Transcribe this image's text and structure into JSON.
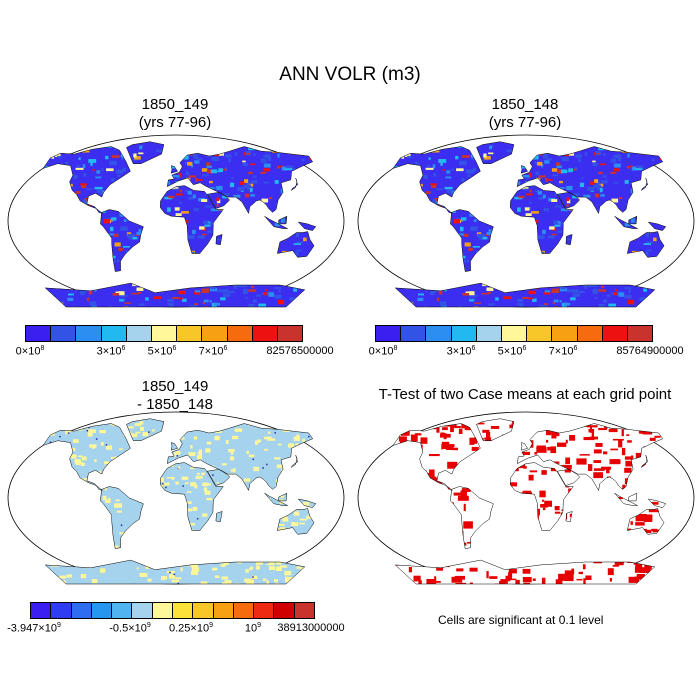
{
  "title": "ANN VOLR (m3)",
  "panels": [
    {
      "title": "1850_149\n(yrs 77-96)"
    },
    {
      "title": "1850_148\n(yrs 77-96)"
    },
    {
      "title": "1850_149\n- 1850_148"
    },
    {
      "title": "T-Test of two Case means at each grid point"
    }
  ],
  "colorbar_top": {
    "colors": [
      "#3a1ff0",
      "#3352e6",
      "#2b8ef0",
      "#22b8f0",
      "#a5d3ee",
      "#fff79a",
      "#f7c72a",
      "#f7a112",
      "#f56b0e",
      "#ee1111",
      "#c8332e"
    ],
    "labels_left": [
      {
        "base": "0×10",
        "exp": "8"
      },
      {
        "base": "3×10",
        "exp": "6"
      },
      {
        "base": "5×10",
        "exp": "6"
      },
      {
        "base": "7×10",
        "exp": "6"
      },
      {
        "base": "82576500000",
        "exp": ""
      }
    ],
    "labels_right": [
      {
        "base": "0×10",
        "exp": "8"
      },
      {
        "base": "3×10",
        "exp": "6"
      },
      {
        "base": "5×10",
        "exp": "6"
      },
      {
        "base": "7×10",
        "exp": "6"
      },
      {
        "base": "85764900000",
        "exp": ""
      }
    ]
  },
  "colorbar_diff": {
    "colors": [
      "#3a1ff0",
      "#2f3df2",
      "#2e6cf0",
      "#2597f0",
      "#4fb4f0",
      "#a5d3ee",
      "#fff79a",
      "#fbe13a",
      "#f7c72a",
      "#f7a112",
      "#f56b0e",
      "#ee2a12",
      "#d00000",
      "#c8332e"
    ],
    "labels": [
      {
        "base": "-3.947×10",
        "exp": "9"
      },
      {
        "base": "-0.5×10",
        "exp": "9"
      },
      {
        "base": "0.25×10",
        "exp": "9"
      },
      {
        "base": "10",
        "exp": "9"
      },
      {
        "base": "38913000000",
        "exp": ""
      }
    ]
  },
  "ttest_note": "Cells are significant at 0.1 level",
  "colors": {
    "land_base": "#3c2ef0",
    "diff_pos": "#fff79a",
    "diff_neg": "#a5d3ee",
    "significant": "#e60000"
  }
}
